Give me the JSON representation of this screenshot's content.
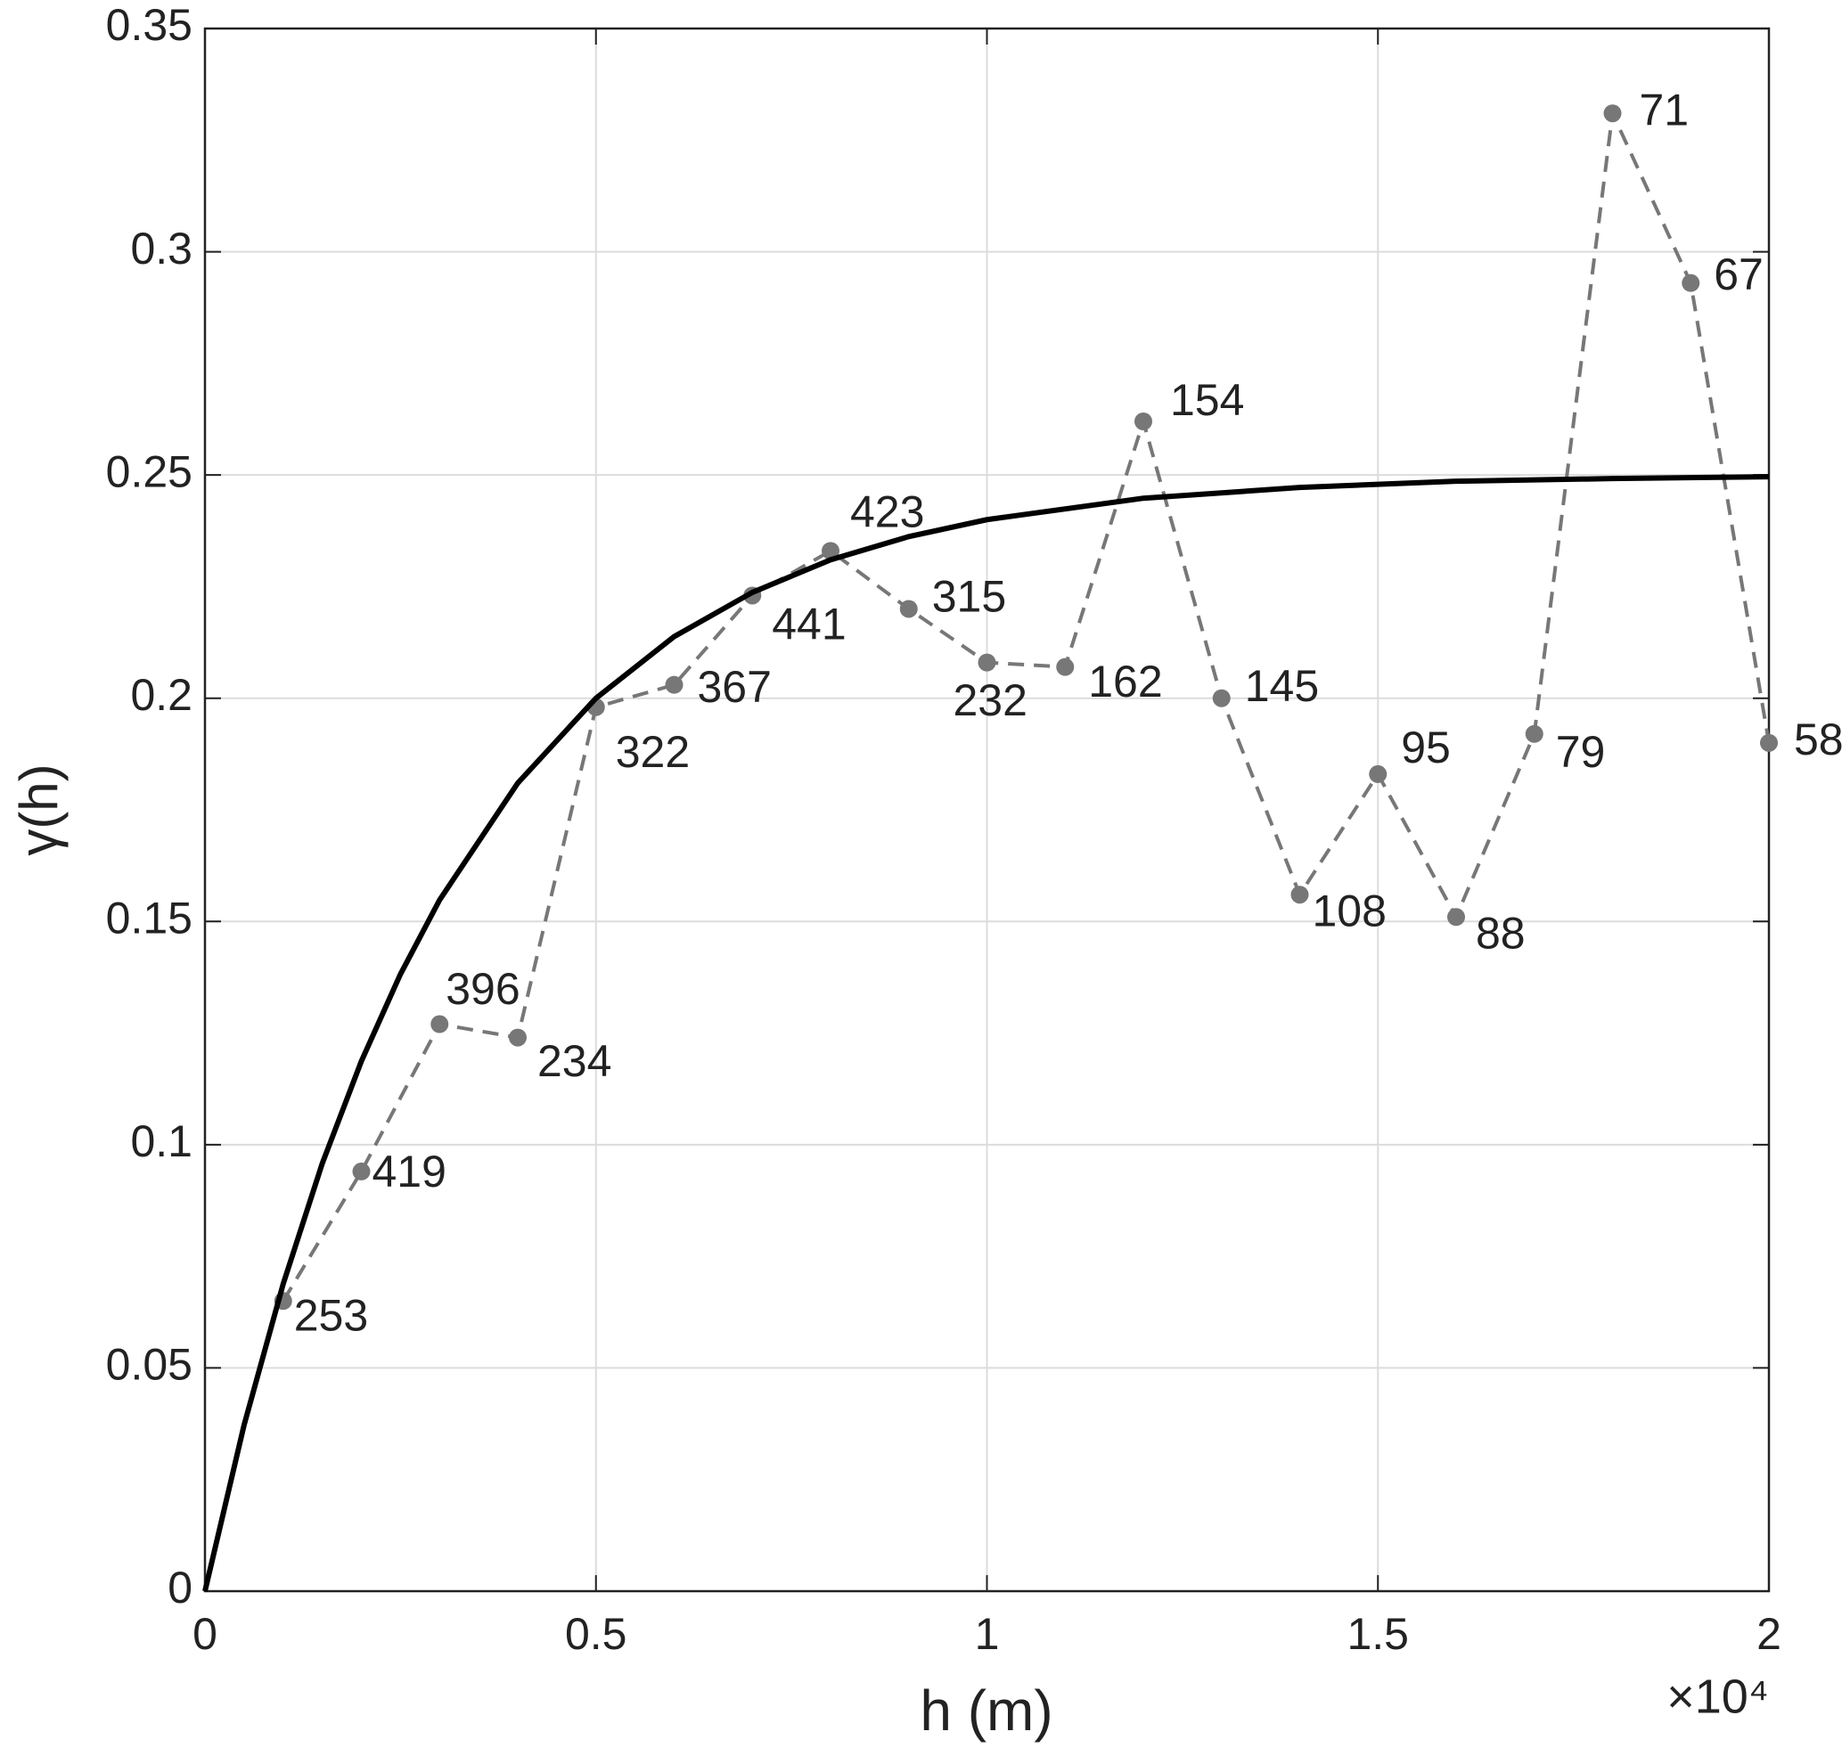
{
  "chart_data": {
    "type": "line",
    "xlabel": "h (m)",
    "ylabel": "γ(h)",
    "x_multiplier_label": "×10⁴",
    "xlim": [
      0,
      2
    ],
    "xticks": [
      0,
      0.5,
      1,
      1.5,
      2
    ],
    "ylim": [
      0,
      0.35
    ],
    "yticks": [
      0,
      0.05,
      0.1,
      0.15,
      0.2,
      0.25,
      0.3,
      0.35
    ],
    "grid": true,
    "series": [
      {
        "color": "#777777",
        "dashed": true,
        "markers": true,
        "x": [
          0.1,
          0.2,
          0.3,
          0.4,
          0.5,
          0.6,
          0.7,
          0.8,
          0.9,
          1.0,
          1.1,
          1.2,
          1.3,
          1.4,
          1.5,
          1.6,
          1.7,
          1.8,
          1.9,
          2.0
        ],
        "values": [
          0.065,
          0.094,
          0.127,
          0.124,
          0.198,
          0.203,
          0.223,
          0.233,
          0.22,
          0.208,
          0.207,
          0.262,
          0.2,
          0.156,
          0.183,
          0.151,
          0.192,
          0.331,
          0.293,
          0.19
        ],
        "point_labels": [
          253,
          419,
          396,
          234,
          322,
          367,
          441,
          423,
          315,
          232,
          162,
          154,
          145,
          108,
          95,
          88,
          79,
          71,
          67,
          58
        ]
      },
      {
        "color": "#000000",
        "dashed": false,
        "markers": false,
        "x": [
          0,
          0.05,
          0.1,
          0.15,
          0.2,
          0.25,
          0.3,
          0.4,
          0.5,
          0.6,
          0.7,
          0.8,
          0.9,
          1.0,
          1.2,
          1.4,
          1.6,
          1.8,
          2.0
        ],
        "values": [
          0,
          0.0372,
          0.0688,
          0.0958,
          0.1187,
          0.1382,
          0.1548,
          0.181,
          0.2,
          0.2138,
          0.2237,
          0.231,
          0.2362,
          0.24,
          0.2448,
          0.2472,
          0.2486,
          0.2492,
          0.2496
        ]
      }
    ]
  }
}
